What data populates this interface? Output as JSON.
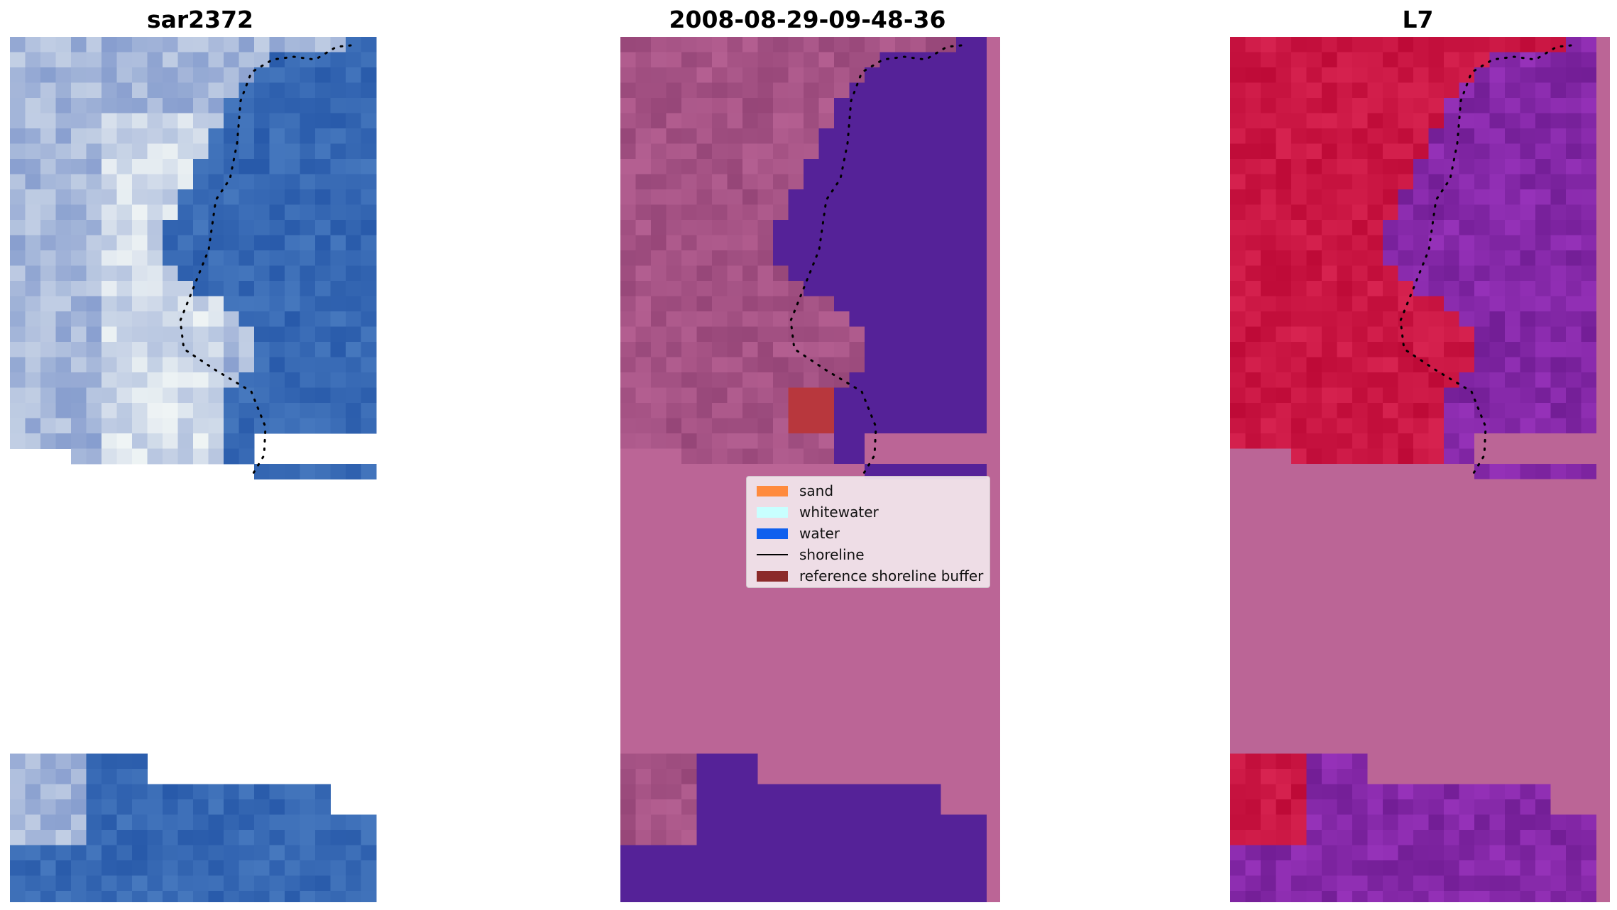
{
  "panels": [
    {
      "title": "sar2372",
      "image": "RGB satellite image crop"
    },
    {
      "title": "2008-08-29-09-48-36",
      "image": "classified image overlay"
    },
    {
      "title": "L7",
      "image": "MNDWI index image"
    }
  ],
  "legend": {
    "items": [
      {
        "label": "sand",
        "color": "#ff8a3d",
        "kind": "patch"
      },
      {
        "label": "whitewater",
        "color": "#c8ffff",
        "kind": "patch"
      },
      {
        "label": "water",
        "color": "#1060ee",
        "kind": "patch"
      },
      {
        "label": "shoreline",
        "color": "#000000",
        "kind": "line"
      },
      {
        "label": "reference shoreline buffer",
        "color": "#8b2a2a",
        "kind": "patch"
      }
    ]
  },
  "colors": {
    "rgb_water": "#2f5fae",
    "rgb_sand": "#c8cfe6",
    "class_land": "#a04d86",
    "class_water": "#552298",
    "class_mask": "#bb6596",
    "class_buffer": "#b8373d",
    "index_land": "#c5103c",
    "index_water": "#7d28a6",
    "index_mask": "#bb6596",
    "shoreline": "#000000"
  }
}
